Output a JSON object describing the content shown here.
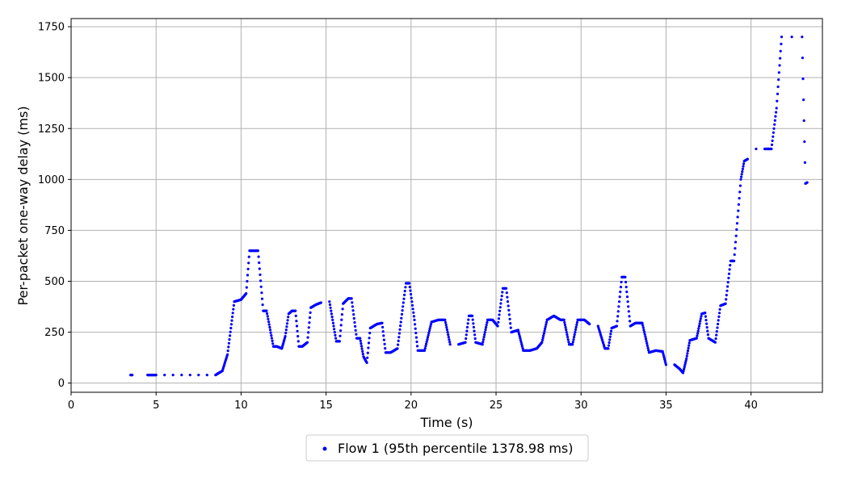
{
  "chart_data": {
    "type": "scatter",
    "xlabel": "Time (s)",
    "ylabel": "Per-packet one-way delay (ms)",
    "xlim": [
      0,
      44.2
    ],
    "ylim": [
      -45,
      1790
    ],
    "x_ticks": [
      0,
      5,
      10,
      15,
      20,
      25,
      30,
      35,
      40
    ],
    "y_ticks": [
      0,
      250,
      500,
      750,
      1000,
      1250,
      1500,
      1750
    ],
    "grid": true,
    "legend_position": "bottom-center",
    "series": [
      {
        "name": "Flow 1 (95th percentile 1378.98 ms)",
        "color": "#0000ff",
        "points": [
          [
            3.5,
            40
          ],
          [
            3.6,
            40
          ],
          [
            4.5,
            40
          ],
          [
            4.6,
            40
          ],
          [
            5.0,
            40
          ],
          [
            5.5,
            40
          ],
          [
            6.0,
            40
          ],
          [
            6.5,
            40
          ],
          [
            7.0,
            40
          ],
          [
            7.5,
            40
          ],
          [
            8.0,
            40
          ],
          [
            8.5,
            40
          ],
          [
            8.9,
            60
          ],
          [
            9.2,
            140
          ],
          [
            9.4,
            270
          ],
          [
            9.6,
            400
          ],
          [
            10.0,
            410
          ],
          [
            10.3,
            440
          ],
          [
            10.5,
            650
          ],
          [
            10.7,
            650
          ],
          [
            11.0,
            650
          ],
          [
            11.3,
            355
          ],
          [
            11.5,
            355
          ],
          [
            11.9,
            180
          ],
          [
            12.1,
            180
          ],
          [
            12.4,
            170
          ],
          [
            12.6,
            230
          ],
          [
            12.8,
            340
          ],
          [
            13.0,
            355
          ],
          [
            13.2,
            355
          ],
          [
            13.4,
            180
          ],
          [
            13.6,
            180
          ],
          [
            13.9,
            200
          ],
          [
            14.1,
            370
          ],
          [
            14.4,
            385
          ],
          [
            14.7,
            395
          ],
          [
            15.2,
            400
          ],
          [
            15.6,
            205
          ],
          [
            15.8,
            205
          ],
          [
            16.0,
            390
          ],
          [
            16.3,
            415
          ],
          [
            16.5,
            415
          ],
          [
            16.8,
            220
          ],
          [
            17.0,
            220
          ],
          [
            17.2,
            130
          ],
          [
            17.4,
            100
          ],
          [
            17.6,
            270
          ],
          [
            18.0,
            290
          ],
          [
            18.3,
            295
          ],
          [
            18.5,
            150
          ],
          [
            18.8,
            150
          ],
          [
            19.2,
            170
          ],
          [
            19.4,
            300
          ],
          [
            19.7,
            490
          ],
          [
            19.9,
            490
          ],
          [
            20.2,
            310
          ],
          [
            20.4,
            160
          ],
          [
            20.8,
            160
          ],
          [
            21.2,
            300
          ],
          [
            21.6,
            310
          ],
          [
            22.0,
            310
          ],
          [
            22.3,
            190
          ],
          [
            22.8,
            190
          ],
          [
            23.2,
            200
          ],
          [
            23.4,
            330
          ],
          [
            23.6,
            330
          ],
          [
            23.8,
            200
          ],
          [
            24.2,
            190
          ],
          [
            24.5,
            310
          ],
          [
            24.8,
            310
          ],
          [
            25.1,
            280
          ],
          [
            25.4,
            465
          ],
          [
            25.6,
            465
          ],
          [
            25.9,
            250
          ],
          [
            26.3,
            260
          ],
          [
            26.6,
            160
          ],
          [
            27.0,
            160
          ],
          [
            27.4,
            170
          ],
          [
            27.7,
            200
          ],
          [
            28.0,
            310
          ],
          [
            28.4,
            330
          ],
          [
            28.8,
            310
          ],
          [
            29.0,
            310
          ],
          [
            29.3,
            190
          ],
          [
            29.5,
            190
          ],
          [
            29.8,
            310
          ],
          [
            30.2,
            310
          ],
          [
            30.5,
            290
          ],
          [
            31.0,
            280
          ],
          [
            31.4,
            170
          ],
          [
            31.6,
            170
          ],
          [
            31.8,
            270
          ],
          [
            32.1,
            280
          ],
          [
            32.4,
            520
          ],
          [
            32.6,
            520
          ],
          [
            32.9,
            280
          ],
          [
            33.2,
            295
          ],
          [
            33.6,
            295
          ],
          [
            34.0,
            150
          ],
          [
            34.4,
            160
          ],
          [
            34.8,
            155
          ],
          [
            35.0,
            90
          ],
          [
            35.5,
            90
          ],
          [
            35.8,
            70
          ],
          [
            36.0,
            50
          ],
          [
            36.2,
            120
          ],
          [
            36.4,
            210
          ],
          [
            36.8,
            220
          ],
          [
            37.1,
            340
          ],
          [
            37.3,
            345
          ],
          [
            37.5,
            220
          ],
          [
            37.9,
            200
          ],
          [
            38.2,
            380
          ],
          [
            38.5,
            390
          ],
          [
            38.8,
            600
          ],
          [
            39.0,
            600
          ],
          [
            39.4,
            1000
          ],
          [
            39.6,
            1090
          ],
          [
            39.8,
            1100
          ],
          [
            40.3,
            1150
          ],
          [
            40.8,
            1150
          ],
          [
            41.2,
            1150
          ],
          [
            41.5,
            1350
          ],
          [
            41.8,
            1700
          ],
          [
            42.4,
            1700
          ],
          [
            43.0,
            1700
          ],
          [
            43.2,
            980
          ],
          [
            43.3,
            985
          ]
        ]
      }
    ]
  }
}
